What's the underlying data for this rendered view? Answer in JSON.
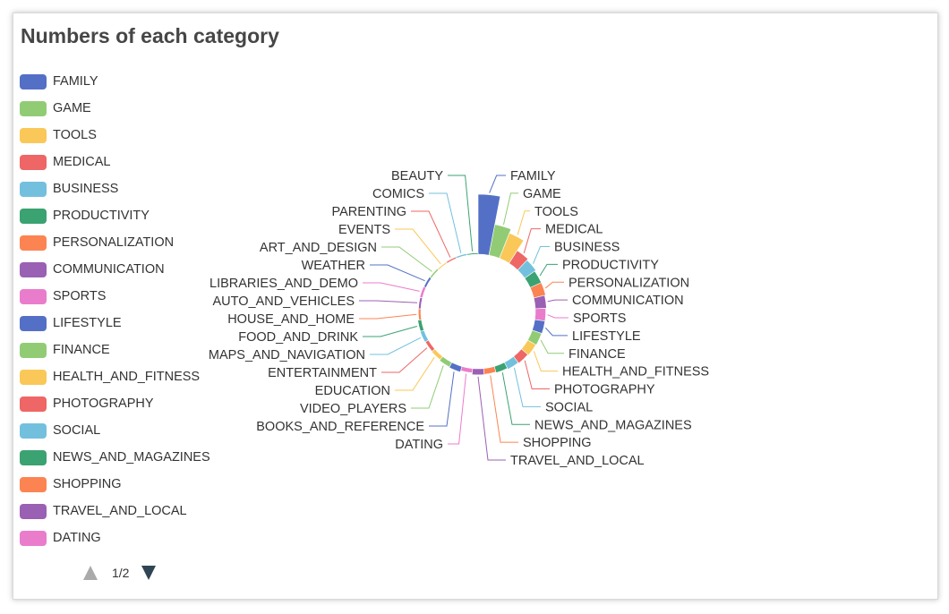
{
  "chart_data": {
    "type": "pie",
    "subtype": "nightingale-rose",
    "title": "Numbers of each category",
    "categories": [
      "FAMILY",
      "GAME",
      "TOOLS",
      "MEDICAL",
      "BUSINESS",
      "PRODUCTIVITY",
      "PERSONALIZATION",
      "COMMUNICATION",
      "SPORTS",
      "LIFESTYLE",
      "FINANCE",
      "HEALTH_AND_FITNESS",
      "PHOTOGRAPHY",
      "SOCIAL",
      "NEWS_AND_MAGAZINES",
      "SHOPPING",
      "TRAVEL_AND_LOCAL",
      "DATING",
      "BOOKS_AND_REFERENCE",
      "VIDEO_PLAYERS",
      "EDUCATION",
      "ENTERTAINMENT",
      "MAPS_AND_NAVIGATION",
      "FOOD_AND_DRINK",
      "HOUSE_AND_HOME",
      "AUTO_AND_VEHICLES",
      "LIBRARIES_AND_DEMO",
      "WEATHER",
      "ART_AND_DESIGN",
      "EVENTS",
      "PARENTING",
      "COMICS",
      "BEAUTY"
    ],
    "values": [
      1832,
      959,
      827,
      463,
      420,
      374,
      374,
      342,
      319,
      314,
      302,
      288,
      263,
      239,
      204,
      180,
      187,
      134,
      178,
      160,
      129,
      111,
      124,
      112,
      76,
      73,
      84,
      71,
      58,
      45,
      50,
      54,
      42
    ],
    "legend": {
      "placement": "left",
      "page": "1/2",
      "visible_items": [
        "FAMILY",
        "GAME",
        "TOOLS",
        "MEDICAL",
        "BUSINESS",
        "PRODUCTIVITY",
        "PERSONALIZATION",
        "COMMUNICATION",
        "SPORTS",
        "LIFESTYLE",
        "FINANCE",
        "HEALTH_AND_FITNESS",
        "PHOTOGRAPHY",
        "SOCIAL",
        "NEWS_AND_MAGAZINES",
        "SHOPPING",
        "TRAVEL_AND_LOCAL",
        "DATING"
      ]
    },
    "palette": [
      "#5470c6",
      "#91cc75",
      "#fac858",
      "#ee6666",
      "#73c0de",
      "#3ba272",
      "#fc8452",
      "#9a60b4",
      "#ea7ccc"
    ]
  },
  "pager": {
    "text": "1/2",
    "prev_icon": "triangle-up-icon",
    "next_icon": "triangle-down-icon",
    "prev_color": "#aaaaaa",
    "next_color": "#2f4554"
  }
}
